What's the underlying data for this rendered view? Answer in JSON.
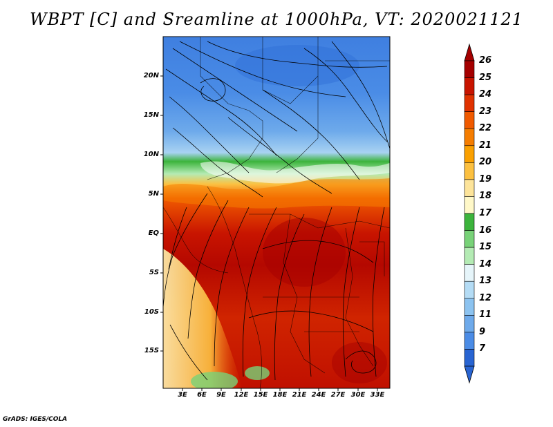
{
  "title": "WBPT [C] and Sreamline at 1000hPa, VT: 2020021121",
  "credit": "GrADS: IGES/COLA",
  "lat_labels": [
    "20N",
    "15N",
    "10N",
    "5N",
    "EQ",
    "5S",
    "10S",
    "15S"
  ],
  "lon_labels": [
    "3E",
    "6E",
    "9E",
    "12E",
    "15E",
    "18E",
    "21E",
    "24E",
    "27E",
    "30E",
    "33E"
  ],
  "colorbar": {
    "levels": [
      "26",
      "25",
      "24",
      "23",
      "22",
      "21",
      "20",
      "19",
      "18",
      "17",
      "16",
      "15",
      "14",
      "13",
      "12",
      "11",
      "9",
      "7"
    ],
    "colors": [
      "#a50000",
      "#c81400",
      "#e03200",
      "#f05a00",
      "#f57d00",
      "#faa000",
      "#fcc040",
      "#fde49a",
      "#fff8c8",
      "#3cb43c",
      "#78d278",
      "#b4ebb4",
      "#e6f5fa",
      "#b4dcf5",
      "#8cc3f0",
      "#6eaaeb",
      "#4b8ce6",
      "#2864d2"
    ]
  }
}
